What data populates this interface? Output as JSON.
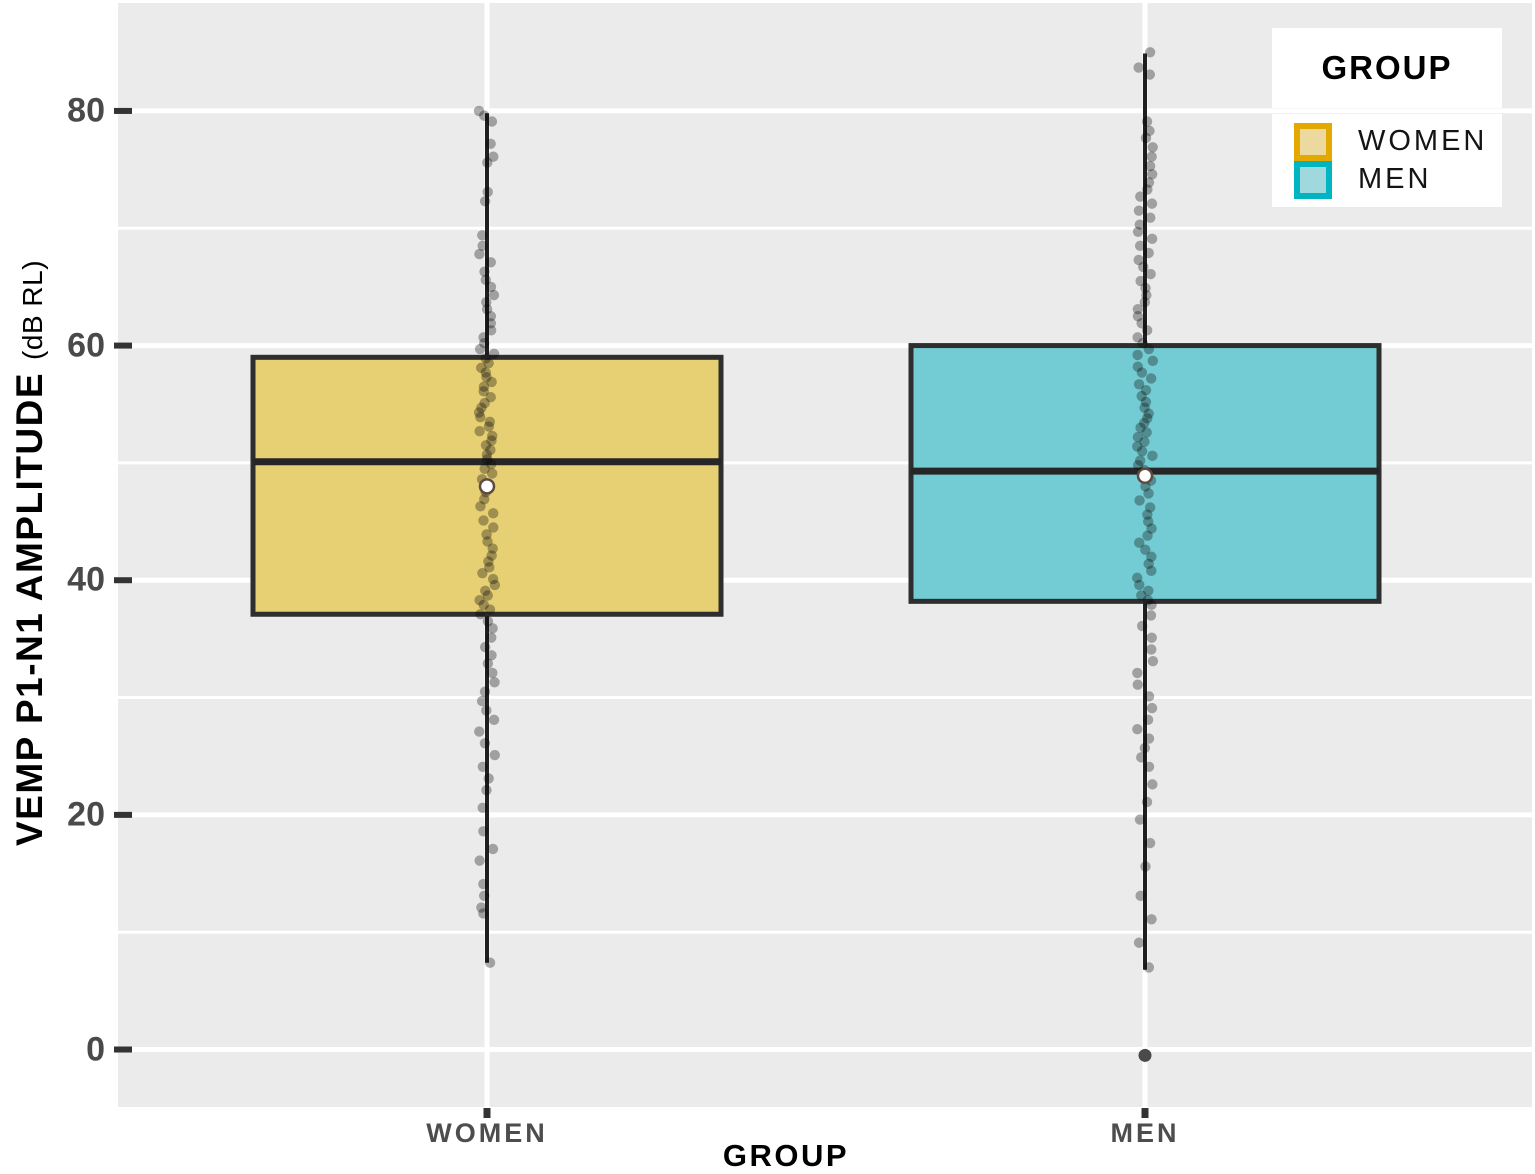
{
  "chart_data": {
    "type": "boxplot",
    "xlabel": "GROUP",
    "ylabel": "VEMP P1-N1 AMPLITUDE",
    "ylabel_unit": "(dB RL)",
    "categories": [
      "WOMEN",
      "MEN"
    ],
    "yticks": [
      0,
      20,
      40,
      60,
      80
    ],
    "yminor": [
      10,
      30,
      50,
      70
    ],
    "ylim": [
      -4.9,
      89.2
    ],
    "grid": "on",
    "legend": {
      "title": "GROUP",
      "position": "top-right-inside"
    },
    "series": [
      {
        "name": "WOMEN",
        "fill": "#E7D074",
        "legend_fill": "#EBD9A0",
        "legend_border": "#E3A900",
        "stats": {
          "whisker_low": 7.4,
          "q1": 37.1,
          "median": 50.1,
          "q3": 59.0,
          "whisker_high": 79.8,
          "mean": 48.0
        },
        "outliers": [],
        "points": [
          80,
          79.6,
          79.1,
          77.2,
          76.1,
          75.6,
          73.1,
          72.3,
          69.4,
          68.5,
          67.8,
          67.1,
          66.3,
          65.6,
          65,
          64.3,
          63.7,
          63.1,
          62.5,
          61.9,
          61.3,
          60.7,
          60.2,
          59.7,
          59.3,
          58.9,
          58.5,
          58.1,
          57.7,
          57.3,
          56.9,
          56.5,
          56.1,
          55.6,
          55.1,
          54.7,
          54.3,
          53.9,
          53.5,
          53.1,
          52.7,
          52.3,
          51.9,
          51.5,
          51.1,
          50.7,
          50.3,
          49.9,
          49.5,
          49.1,
          48.6,
          48.1,
          47.5,
          46.9,
          46.3,
          45.7,
          45.1,
          44.5,
          43.9,
          43.3,
          42.7,
          42.1,
          41.6,
          41.1,
          40.6,
          40.1,
          39.6,
          39.1,
          38.7,
          38.3,
          37.9,
          37.5,
          37.1,
          36.5,
          35.9,
          35.1,
          34.3,
          33.6,
          32.9,
          32.1,
          31.3,
          30.5,
          29.7,
          28.9,
          28.1,
          27.1,
          26.1,
          25.1,
          24.1,
          23.1,
          22.1,
          20.6,
          18.6,
          17.1,
          16.1,
          14.1,
          13.1,
          12.1,
          11.6,
          7.4
        ]
      },
      {
        "name": "MEN",
        "fill": "#73CCD3",
        "legend_fill": "#9FD9DE",
        "legend_border": "#00B5C2",
        "stats": {
          "whisker_low": 6.8,
          "q1": 38.2,
          "median": 49.3,
          "q3": 60.0,
          "whisker_high": 84.9,
          "mean": 48.9
        },
        "outliers": [
          -0.5
        ],
        "points": [
          85,
          83.7,
          83.1,
          79.1,
          78.3,
          77.7,
          76.9,
          76.1,
          75.3,
          74.6,
          73.9,
          73.3,
          72.7,
          72.1,
          71.5,
          70.9,
          70.3,
          69.7,
          69.1,
          68.5,
          67.9,
          67.3,
          66.7,
          66.1,
          65.5,
          64.9,
          64.3,
          63.7,
          63.1,
          62.5,
          61.9,
          61.3,
          60.7,
          60.2,
          59.7,
          59.2,
          58.7,
          58.2,
          57.7,
          57.2,
          56.7,
          56.2,
          55.7,
          55.2,
          54.7,
          54.2,
          53.8,
          53.4,
          53,
          52.6,
          52.2,
          51.8,
          51.4,
          51,
          50.6,
          50.2,
          49.8,
          49.4,
          49,
          48.5,
          48,
          47.4,
          46.8,
          46.2,
          45.6,
          45,
          44.4,
          43.8,
          43.2,
          42.6,
          42,
          41.4,
          40.8,
          40.2,
          39.6,
          39.1,
          38.7,
          38.3,
          37.9,
          37,
          36.1,
          35.1,
          34.1,
          33.1,
          32.1,
          31.1,
          30.1,
          29.1,
          28.1,
          27.3,
          26.5,
          25.7,
          24.9,
          24.1,
          22.6,
          21.1,
          19.6,
          17.6,
          15.6,
          13.1,
          11.1,
          9.1,
          7
        ]
      }
    ],
    "colors": {
      "panel_bg": "#EBEBEB",
      "gridline": "#FFFFFF",
      "box_border": "#2E2E2E",
      "median": "#262626",
      "whisker": "#1F1F1F",
      "point": "#0A0A0A",
      "outlier": "#4A4A4A",
      "mean_fill": "#FFFFFF",
      "mean_stroke": "#5E4B40",
      "tick": "#333333",
      "tick_label": "#4A4A4A",
      "axis_title": "#000000"
    }
  }
}
